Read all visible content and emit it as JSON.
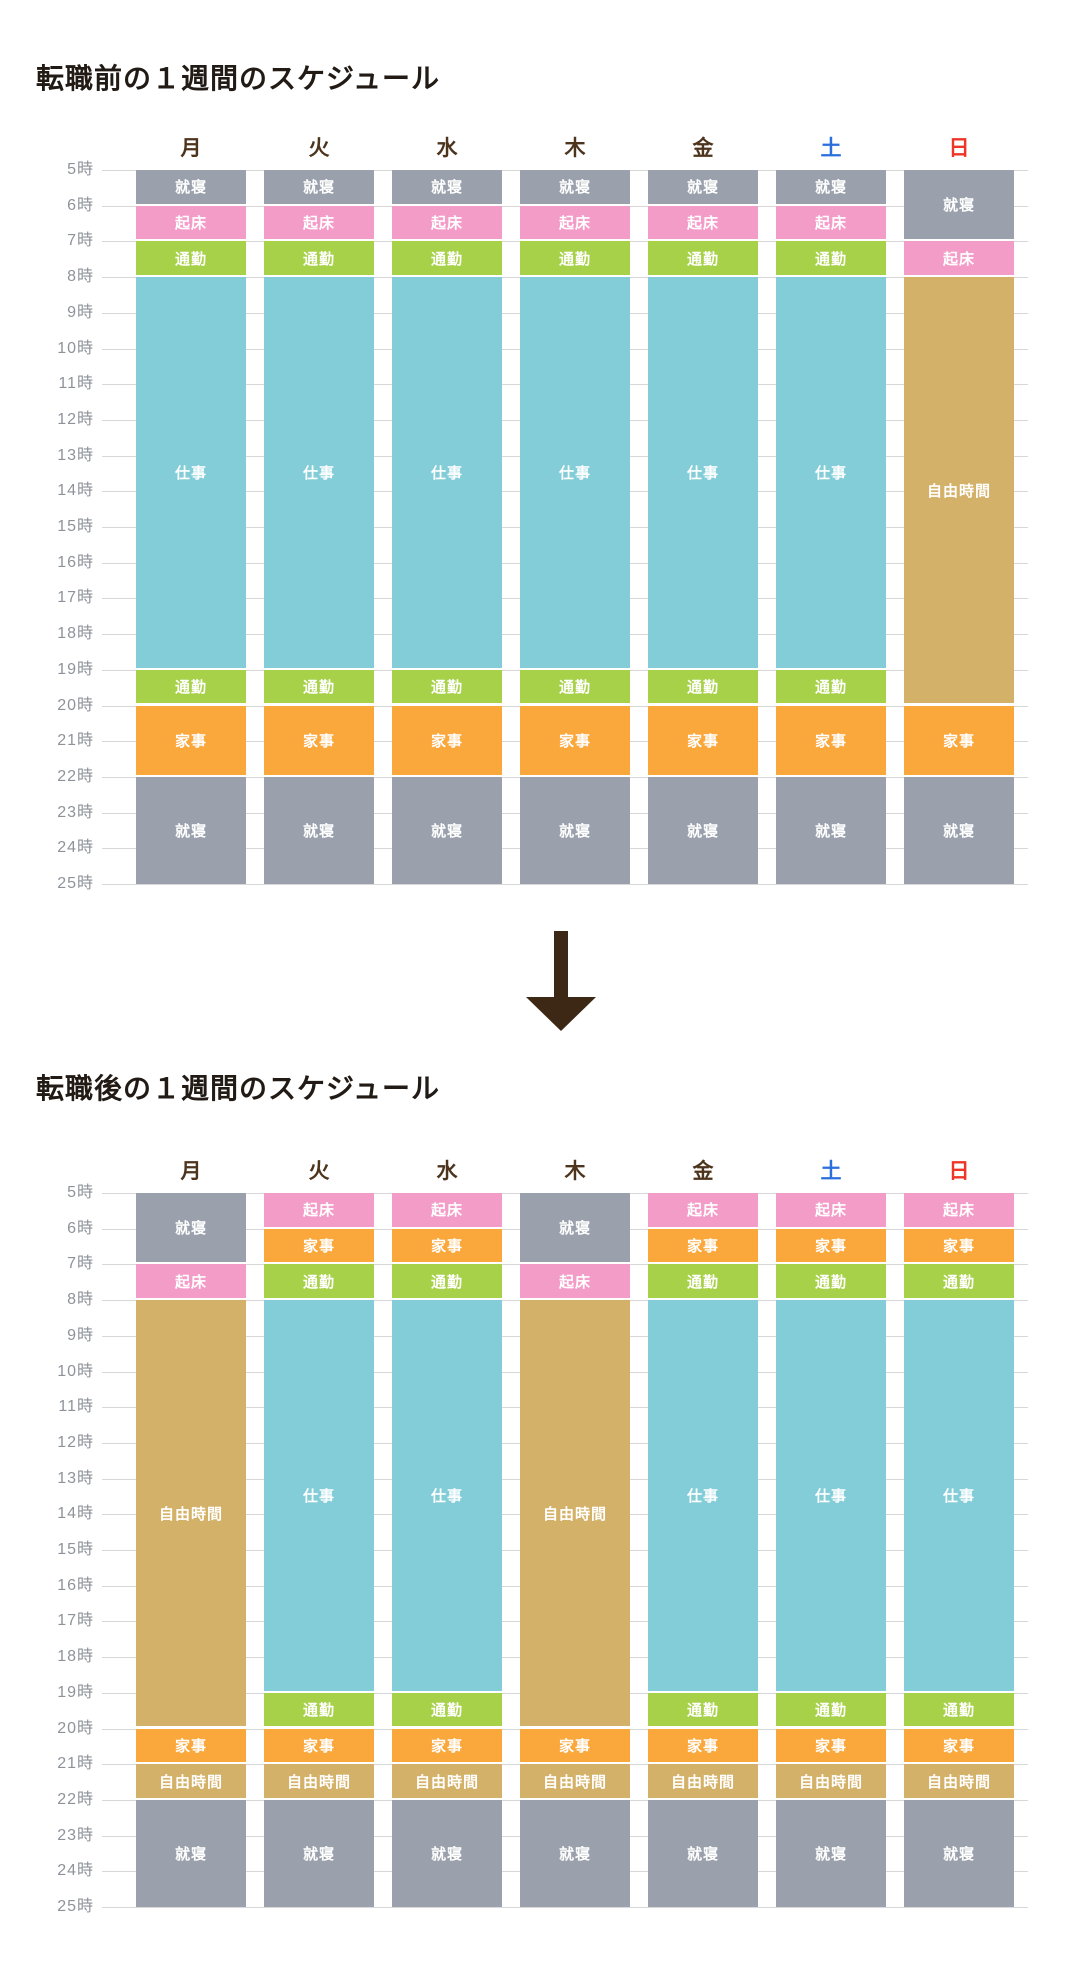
{
  "activity_colors": {
    "sleep": "#9aa1ac",
    "wake": "#f49cc8",
    "commute": "#a7d148",
    "work": "#82cdd7",
    "housework": "#faa73c",
    "free": "#d4b169"
  },
  "text_colors": {
    "title": "#221b15",
    "weekday": "#4d341d",
    "saturday": "#2b6fdd",
    "sunday": "#ee3528",
    "time_label": "#8e939a",
    "gridline": "#d8d8d8",
    "block_text": "#ffffff",
    "arrow": "#3d2715"
  },
  "arrow_icon": "down-arrow",
  "chart_data": [
    {
      "type": "bar",
      "subtype": "stacked-vertical-time-schedule",
      "title": "転職前の１週間のスケジュール",
      "categories": [
        "月",
        "火",
        "水",
        "木",
        "金",
        "土",
        "日"
      ],
      "activities_legend": [
        "就寝",
        "起床",
        "通勤",
        "仕事",
        "家事",
        "自由時間"
      ],
      "y_axis": {
        "min": 5,
        "max": 25,
        "unit": "時",
        "ticks": [
          "5時",
          "6時",
          "7時",
          "8時",
          "9時",
          "10時",
          "11時",
          "12時",
          "13時",
          "14時",
          "15時",
          "16時",
          "17時",
          "18時",
          "19時",
          "20時",
          "21時",
          "22時",
          "23時",
          "24時",
          "25時"
        ]
      },
      "columns": [
        {
          "day": "月",
          "color_key": "weekday",
          "blocks": [
            [
              "就寝",
              5,
              6,
              "sleep"
            ],
            [
              "起床",
              6,
              7,
              "wake"
            ],
            [
              "通勤",
              7,
              8,
              "commute"
            ],
            [
              "仕事",
              8,
              19,
              "work"
            ],
            [
              "通勤",
              19,
              20,
              "commute"
            ],
            [
              "家事",
              20,
              22,
              "housework"
            ],
            [
              "就寝",
              22,
              25,
              "sleep"
            ]
          ]
        },
        {
          "day": "火",
          "color_key": "weekday",
          "blocks": [
            [
              "就寝",
              5,
              6,
              "sleep"
            ],
            [
              "起床",
              6,
              7,
              "wake"
            ],
            [
              "通勤",
              7,
              8,
              "commute"
            ],
            [
              "仕事",
              8,
              19,
              "work"
            ],
            [
              "通勤",
              19,
              20,
              "commute"
            ],
            [
              "家事",
              20,
              22,
              "housework"
            ],
            [
              "就寝",
              22,
              25,
              "sleep"
            ]
          ]
        },
        {
          "day": "水",
          "color_key": "weekday",
          "blocks": [
            [
              "就寝",
              5,
              6,
              "sleep"
            ],
            [
              "起床",
              6,
              7,
              "wake"
            ],
            [
              "通勤",
              7,
              8,
              "commute"
            ],
            [
              "仕事",
              8,
              19,
              "work"
            ],
            [
              "通勤",
              19,
              20,
              "commute"
            ],
            [
              "家事",
              20,
              22,
              "housework"
            ],
            [
              "就寝",
              22,
              25,
              "sleep"
            ]
          ]
        },
        {
          "day": "木",
          "color_key": "weekday",
          "blocks": [
            [
              "就寝",
              5,
              6,
              "sleep"
            ],
            [
              "起床",
              6,
              7,
              "wake"
            ],
            [
              "通勤",
              7,
              8,
              "commute"
            ],
            [
              "仕事",
              8,
              19,
              "work"
            ],
            [
              "通勤",
              19,
              20,
              "commute"
            ],
            [
              "家事",
              20,
              22,
              "housework"
            ],
            [
              "就寝",
              22,
              25,
              "sleep"
            ]
          ]
        },
        {
          "day": "金",
          "color_key": "weekday",
          "blocks": [
            [
              "就寝",
              5,
              6,
              "sleep"
            ],
            [
              "起床",
              6,
              7,
              "wake"
            ],
            [
              "通勤",
              7,
              8,
              "commute"
            ],
            [
              "仕事",
              8,
              19,
              "work"
            ],
            [
              "通勤",
              19,
              20,
              "commute"
            ],
            [
              "家事",
              20,
              22,
              "housework"
            ],
            [
              "就寝",
              22,
              25,
              "sleep"
            ]
          ]
        },
        {
          "day": "土",
          "color_key": "saturday",
          "blocks": [
            [
              "就寝",
              5,
              6,
              "sleep"
            ],
            [
              "起床",
              6,
              7,
              "wake"
            ],
            [
              "通勤",
              7,
              8,
              "commute"
            ],
            [
              "仕事",
              8,
              19,
              "work"
            ],
            [
              "通勤",
              19,
              20,
              "commute"
            ],
            [
              "家事",
              20,
              22,
              "housework"
            ],
            [
              "就寝",
              22,
              25,
              "sleep"
            ]
          ]
        },
        {
          "day": "日",
          "color_key": "sunday",
          "blocks": [
            [
              "就寝",
              5,
              7,
              "sleep"
            ],
            [
              "起床",
              7,
              8,
              "wake"
            ],
            [
              "自由時間",
              8,
              20,
              "free"
            ],
            [
              "家事",
              20,
              22,
              "housework"
            ],
            [
              "就寝",
              22,
              25,
              "sleep"
            ]
          ]
        }
      ]
    },
    {
      "type": "bar",
      "subtype": "stacked-vertical-time-schedule",
      "title": "転職後の１週間のスケジュール",
      "categories": [
        "月",
        "火",
        "水",
        "木",
        "金",
        "土",
        "日"
      ],
      "activities_legend": [
        "就寝",
        "起床",
        "通勤",
        "仕事",
        "家事",
        "自由時間"
      ],
      "y_axis": {
        "min": 5,
        "max": 25,
        "unit": "時",
        "ticks": [
          "5時",
          "6時",
          "7時",
          "8時",
          "9時",
          "10時",
          "11時",
          "12時",
          "13時",
          "14時",
          "15時",
          "16時",
          "17時",
          "18時",
          "19時",
          "20時",
          "21時",
          "22時",
          "23時",
          "24時",
          "25時"
        ]
      },
      "columns": [
        {
          "day": "月",
          "color_key": "weekday",
          "blocks": [
            [
              "就寝",
              5,
              7,
              "sleep"
            ],
            [
              "起床",
              7,
              8,
              "wake"
            ],
            [
              "自由時間",
              8,
              20,
              "free"
            ],
            [
              "家事",
              20,
              21,
              "housework"
            ],
            [
              "自由時間",
              21,
              22,
              "free"
            ],
            [
              "就寝",
              22,
              25,
              "sleep"
            ]
          ]
        },
        {
          "day": "火",
          "color_key": "weekday",
          "blocks": [
            [
              "起床",
              5,
              6,
              "wake"
            ],
            [
              "家事",
              6,
              7,
              "housework"
            ],
            [
              "通勤",
              7,
              8,
              "commute"
            ],
            [
              "仕事",
              8,
              19,
              "work"
            ],
            [
              "通勤",
              19,
              20,
              "commute"
            ],
            [
              "家事",
              20,
              21,
              "housework"
            ],
            [
              "自由時間",
              21,
              22,
              "free"
            ],
            [
              "就寝",
              22,
              25,
              "sleep"
            ]
          ]
        },
        {
          "day": "水",
          "color_key": "weekday",
          "blocks": [
            [
              "起床",
              5,
              6,
              "wake"
            ],
            [
              "家事",
              6,
              7,
              "housework"
            ],
            [
              "通勤",
              7,
              8,
              "commute"
            ],
            [
              "仕事",
              8,
              19,
              "work"
            ],
            [
              "通勤",
              19,
              20,
              "commute"
            ],
            [
              "家事",
              20,
              21,
              "housework"
            ],
            [
              "自由時間",
              21,
              22,
              "free"
            ],
            [
              "就寝",
              22,
              25,
              "sleep"
            ]
          ]
        },
        {
          "day": "木",
          "color_key": "weekday",
          "blocks": [
            [
              "就寝",
              5,
              7,
              "sleep"
            ],
            [
              "起床",
              7,
              8,
              "wake"
            ],
            [
              "自由時間",
              8,
              20,
              "free"
            ],
            [
              "家事",
              20,
              21,
              "housework"
            ],
            [
              "自由時間",
              21,
              22,
              "free"
            ],
            [
              "就寝",
              22,
              25,
              "sleep"
            ]
          ]
        },
        {
          "day": "金",
          "color_key": "weekday",
          "blocks": [
            [
              "起床",
              5,
              6,
              "wake"
            ],
            [
              "家事",
              6,
              7,
              "housework"
            ],
            [
              "通勤",
              7,
              8,
              "commute"
            ],
            [
              "仕事",
              8,
              19,
              "work"
            ],
            [
              "通勤",
              19,
              20,
              "commute"
            ],
            [
              "家事",
              20,
              21,
              "housework"
            ],
            [
              "自由時間",
              21,
              22,
              "free"
            ],
            [
              "就寝",
              22,
              25,
              "sleep"
            ]
          ]
        },
        {
          "day": "土",
          "color_key": "saturday",
          "blocks": [
            [
              "起床",
              5,
              6,
              "wake"
            ],
            [
              "家事",
              6,
              7,
              "housework"
            ],
            [
              "通勤",
              7,
              8,
              "commute"
            ],
            [
              "仕事",
              8,
              19,
              "work"
            ],
            [
              "通勤",
              19,
              20,
              "commute"
            ],
            [
              "家事",
              20,
              21,
              "housework"
            ],
            [
              "自由時間",
              21,
              22,
              "free"
            ],
            [
              "就寝",
              22,
              25,
              "sleep"
            ]
          ]
        },
        {
          "day": "日",
          "color_key": "sunday",
          "blocks": [
            [
              "起床",
              5,
              6,
              "wake"
            ],
            [
              "家事",
              6,
              7,
              "housework"
            ],
            [
              "通勤",
              7,
              8,
              "commute"
            ],
            [
              "仕事",
              8,
              19,
              "work"
            ],
            [
              "通勤",
              19,
              20,
              "commute"
            ],
            [
              "家事",
              20,
              21,
              "housework"
            ],
            [
              "自由時間",
              21,
              22,
              "free"
            ],
            [
              "就寝",
              22,
              25,
              "sleep"
            ]
          ]
        }
      ]
    }
  ]
}
